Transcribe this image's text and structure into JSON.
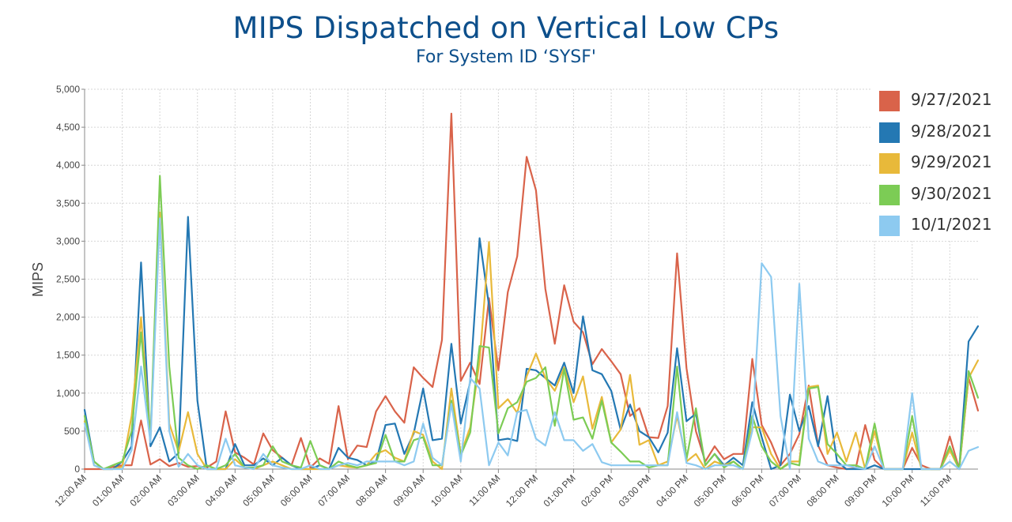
{
  "chart_data": {
    "type": "line",
    "title": "MIPS Dispatched on Vertical Low CPs",
    "subtitle": "For System ID ‘SYSF'",
    "ylabel": "MIPS",
    "xlabel": "",
    "ylim": [
      0,
      5000
    ],
    "yticks": [
      "0",
      "500",
      "1,000",
      "1,500",
      "2,000",
      "2,500",
      "3,000",
      "3,500",
      "4,000",
      "4,500",
      "5,000"
    ],
    "xlim": [
      0,
      23.75
    ],
    "x_step_minutes": 15,
    "xticks": [
      "12:00 AM",
      "01:00 AM",
      "02:00 AM",
      "03:00 AM",
      "04:00 AM",
      "05:00 AM",
      "06:00 AM",
      "07:00 AM",
      "08:00 AM",
      "09:00 AM",
      "10:00 AM",
      "11:00 AM",
      "12:00 PM",
      "01:00 PM",
      "02:00 PM",
      "03:00 PM",
      "04:00 PM",
      "05:00 PM",
      "06:00 PM",
      "07:00 PM",
      "08:00 PM",
      "09:00 PM",
      "10:00 PM",
      "11:00 PM"
    ],
    "grid": true,
    "legend_position": "top-right",
    "series": [
      {
        "name": "9/27/2021",
        "color": "#d9634a",
        "values": [
          0,
          0,
          0,
          30,
          50,
          50,
          640,
          60,
          130,
          40,
          80,
          30,
          40,
          20,
          100,
          760,
          220,
          150,
          60,
          470,
          250,
          150,
          50,
          410,
          20,
          140,
          70,
          830,
          130,
          310,
          290,
          760,
          960,
          760,
          610,
          1340,
          1200,
          1080,
          1700,
          4680,
          1160,
          1400,
          1120,
          2250,
          1300,
          2330,
          2800,
          4110,
          3670,
          2370,
          1650,
          2420,
          1940,
          1800,
          1380,
          1580,
          1420,
          1250,
          700,
          800,
          420,
          410,
          830,
          2840,
          1330,
          500,
          100,
          300,
          130,
          200,
          200,
          1450,
          580,
          350,
          50,
          200,
          460,
          1100,
          310,
          50,
          20,
          0,
          10,
          580,
          120,
          0,
          0,
          0,
          280,
          50,
          0,
          0,
          430,
          0,
          1200,
          770
        ]
      },
      {
        "name": "9/28/2021",
        "color": "#2478b3",
        "values": [
          780,
          100,
          0,
          0,
          100,
          300,
          2720,
          300,
          550,
          100,
          210,
          3320,
          900,
          0,
          0,
          0,
          330,
          50,
          50,
          140,
          50,
          150,
          50,
          0,
          0,
          50,
          0,
          280,
          150,
          120,
          50,
          100,
          580,
          600,
          200,
          470,
          1060,
          380,
          400,
          1650,
          600,
          1150,
          3040,
          2150,
          380,
          400,
          370,
          1320,
          1300,
          1200,
          1100,
          1400,
          1000,
          2010,
          1300,
          1250,
          1030,
          520,
          850,
          500,
          420,
          220,
          480,
          1590,
          630,
          730,
          50,
          200,
          50,
          150,
          50,
          880,
          420,
          0,
          50,
          980,
          500,
          830,
          300,
          960,
          100,
          0,
          0,
          0,
          50,
          0,
          0,
          0,
          0,
          0,
          0,
          0,
          280,
          0,
          1680,
          1880
        ]
      },
      {
        "name": "9/29/2021",
        "color": "#e8b93a",
        "values": [
          630,
          50,
          0,
          0,
          30,
          700,
          2000,
          400,
          3380,
          600,
          230,
          750,
          200,
          0,
          0,
          0,
          130,
          20,
          0,
          50,
          100,
          50,
          0,
          0,
          0,
          0,
          0,
          50,
          30,
          20,
          50,
          200,
          250,
          150,
          100,
          500,
          450,
          100,
          0,
          1060,
          200,
          550,
          1420,
          2990,
          800,
          920,
          740,
          1220,
          1520,
          1200,
          1030,
          1340,
          880,
          1220,
          530,
          950,
          350,
          520,
          1240,
          320,
          380,
          50,
          100,
          700,
          100,
          200,
          0,
          100,
          50,
          100,
          0,
          550,
          550,
          200,
          0,
          100,
          100,
          1080,
          1100,
          200,
          480,
          100,
          480,
          0,
          500,
          0,
          0,
          0,
          480,
          0,
          0,
          0,
          250,
          0,
          1200,
          1430
        ]
      },
      {
        "name": "9/30/2021",
        "color": "#7ccc55",
        "values": [
          700,
          100,
          0,
          50,
          100,
          500,
          1800,
          400,
          3860,
          1350,
          150,
          50,
          0,
          50,
          0,
          50,
          200,
          20,
          20,
          50,
          300,
          100,
          50,
          20,
          370,
          50,
          0,
          100,
          50,
          20,
          50,
          80,
          450,
          100,
          100,
          380,
          420,
          50,
          50,
          900,
          180,
          480,
          1620,
          1600,
          470,
          800,
          880,
          1150,
          1200,
          1340,
          570,
          1320,
          650,
          680,
          400,
          900,
          350,
          230,
          100,
          100,
          20,
          50,
          50,
          1350,
          130,
          800,
          50,
          200,
          20,
          100,
          0,
          700,
          300,
          100,
          0,
          80,
          50,
          1060,
          1080,
          330,
          200,
          50,
          50,
          0,
          600,
          0,
          0,
          0,
          700,
          0,
          0,
          0,
          300,
          0,
          1290,
          940
        ]
      },
      {
        "name": "10/1/2021",
        "color": "#8dcaf0",
        "values": [
          600,
          50,
          0,
          0,
          0,
          250,
          1350,
          350,
          3300,
          500,
          30,
          200,
          50,
          0,
          0,
          400,
          50,
          20,
          0,
          200,
          50,
          20,
          0,
          0,
          50,
          0,
          0,
          50,
          80,
          50,
          100,
          100,
          100,
          100,
          50,
          100,
          600,
          150,
          50,
          860,
          100,
          1200,
          1060,
          50,
          350,
          180,
          750,
          780,
          400,
          310,
          750,
          380,
          380,
          240,
          330,
          90,
          50,
          50,
          50,
          50,
          50,
          50,
          50,
          750,
          80,
          50,
          0,
          50,
          50,
          50,
          0,
          500,
          2710,
          2530,
          700,
          0,
          2440,
          400,
          100,
          50,
          50,
          50,
          20,
          0,
          300,
          0,
          0,
          0,
          1000,
          0,
          0,
          0,
          100,
          0,
          240,
          290
        ]
      }
    ]
  }
}
